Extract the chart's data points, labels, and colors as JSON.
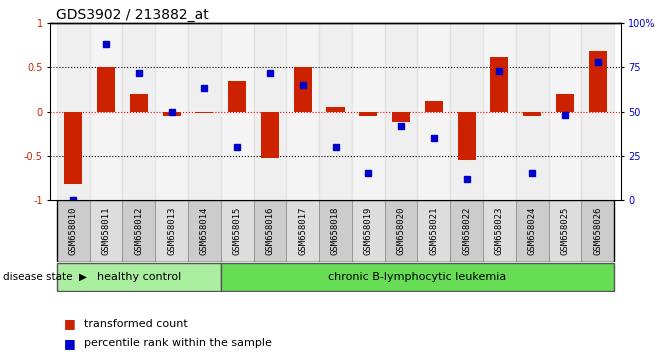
{
  "title": "GDS3902 / 213882_at",
  "samples": [
    "GSM658010",
    "GSM658011",
    "GSM658012",
    "GSM658013",
    "GSM658014",
    "GSM658015",
    "GSM658016",
    "GSM658017",
    "GSM658018",
    "GSM658019",
    "GSM658020",
    "GSM658021",
    "GSM658022",
    "GSM658023",
    "GSM658024",
    "GSM658025",
    "GSM658026"
  ],
  "bar_values": [
    -0.82,
    0.5,
    0.2,
    -0.05,
    -0.02,
    0.35,
    -0.52,
    0.5,
    0.05,
    -0.05,
    -0.12,
    0.12,
    -0.55,
    0.62,
    -0.05,
    0.2,
    0.68
  ],
  "dot_values": [
    0.0,
    88,
    72,
    50,
    63,
    30,
    72,
    65,
    30,
    15,
    42,
    35,
    12,
    73,
    15,
    48,
    78
  ],
  "bar_color": "#CC2200",
  "dot_color": "#0000CC",
  "healthy_control_count": 5,
  "healthy_color": "#AAEEA0",
  "leukemia_color": "#66DD55",
  "sample_box_colors": [
    "#CCCCCC",
    "#DDDDDD"
  ],
  "ylim_left": [
    -1,
    1
  ],
  "ylim_right": [
    0,
    100
  ],
  "left_ticks": [
    -1,
    -0.5,
    0,
    0.5,
    1
  ],
  "left_tick_labels": [
    "-1",
    "-0.5",
    "0",
    "0.5",
    "1"
  ],
  "right_ticks": [
    0,
    25,
    50,
    75,
    100
  ],
  "right_tick_labels": [
    "0",
    "25",
    "50",
    "75",
    "100%"
  ],
  "dotted_lines": [
    -0.5,
    0.0,
    0.5
  ],
  "title_fontsize": 10,
  "tick_fontsize": 7,
  "legend_fontsize": 8
}
